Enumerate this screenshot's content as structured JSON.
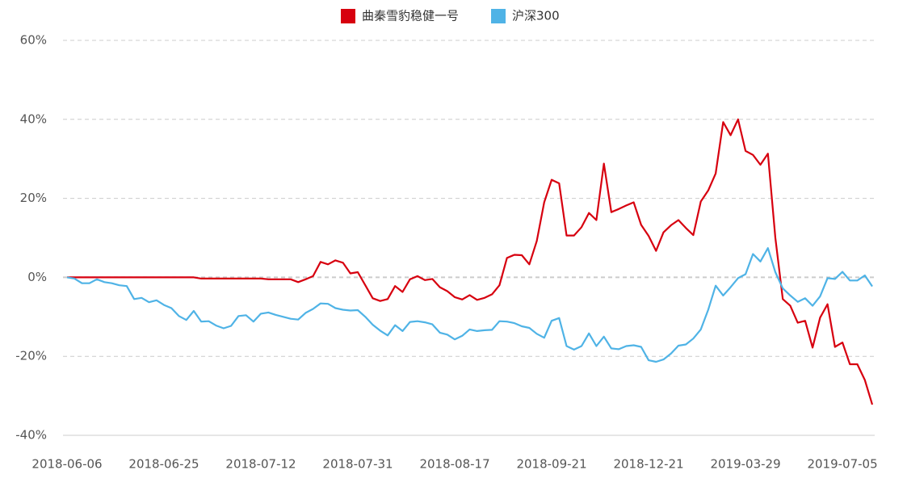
{
  "chart_data": {
    "type": "line",
    "categories": [
      "2018-06-06",
      null,
      null,
      null,
      null,
      null,
      null,
      null,
      null,
      null,
      null,
      null,
      null,
      "2018-06-25",
      null,
      null,
      null,
      null,
      null,
      null,
      null,
      null,
      null,
      null,
      null,
      null,
      "2018-07-12",
      null,
      null,
      null,
      null,
      null,
      null,
      null,
      null,
      null,
      null,
      null,
      null,
      "2018-07-31",
      null,
      null,
      null,
      null,
      null,
      null,
      null,
      null,
      null,
      null,
      null,
      null,
      "2018-08-17",
      null,
      null,
      null,
      null,
      null,
      null,
      null,
      null,
      null,
      null,
      null,
      null,
      "2018-09-21",
      null,
      null,
      null,
      null,
      null,
      null,
      null,
      null,
      null,
      null,
      null,
      null,
      "2018-12-21",
      null,
      null,
      null,
      null,
      null,
      null,
      null,
      null,
      null,
      null,
      null,
      null,
      "2019-03-29",
      null,
      null,
      null,
      null,
      null,
      null,
      null,
      null,
      null,
      null,
      null,
      null,
      "2019-07-05",
      null,
      null,
      null,
      null
    ],
    "series": [
      {
        "name": "曲秦雪豹稳健一号",
        "color": "#d7000f",
        "values": [
          0,
          0,
          0,
          0,
          0,
          0,
          0,
          0,
          0,
          0,
          0,
          0,
          0,
          0,
          0,
          0,
          0,
          0,
          -0.3,
          -0.3,
          -0.3,
          -0.3,
          -0.3,
          -0.3,
          -0.3,
          -0.3,
          -0.3,
          -0.5,
          -0.5,
          -0.5,
          -0.5,
          -1.2,
          -0.5,
          0.3,
          3.9,
          3.3,
          4.3,
          3.7,
          1.0,
          1.3,
          -2,
          -5.3,
          -6,
          -5.5,
          -2.2,
          -3.7,
          -0.5,
          0.3,
          -0.7,
          -0.4,
          -2.5,
          -3.5,
          -5,
          -5.6,
          -4.5,
          -5.7,
          -5.2,
          -4.3,
          -2,
          4.9,
          5.7,
          5.6,
          3.3,
          9.2,
          19,
          24.7,
          23.8,
          10.6,
          10.6,
          12.7,
          16.3,
          14.5,
          28.8,
          16.5,
          17.3,
          18.2,
          19,
          13.3,
          10.5,
          6.7,
          11.4,
          13.2,
          14.5,
          12.5,
          10.7,
          19.2,
          22,
          26.3,
          39.3,
          36,
          40,
          32,
          31,
          28.5,
          31.3,
          10,
          -5.5,
          -7.2,
          -11.5,
          -11,
          -17.8,
          -10.2,
          -6.8,
          -17.6,
          -16.5,
          -22,
          -22,
          -26,
          -32.2
        ]
      },
      {
        "name": "沪深300",
        "color": "#4fb3e6",
        "values": [
          0,
          -0.3,
          -1.5,
          -1.5,
          -0.5,
          -1.2,
          -1.5,
          -2,
          -2.2,
          -5.5,
          -5.2,
          -6.3,
          -5.8,
          -7,
          -7.8,
          -9.8,
          -10.8,
          -8.5,
          -11.2,
          -11.1,
          -12.2,
          -12.9,
          -12.3,
          -9.8,
          -9.6,
          -11.2,
          -9.2,
          -8.9,
          -9.5,
          -10,
          -10.5,
          -10.7,
          -9,
          -8,
          -6.6,
          -6.7,
          -7.8,
          -8.2,
          -8.4,
          -8.3,
          -10,
          -12,
          -13.5,
          -14.7,
          -12.1,
          -13.6,
          -11.3,
          -11.1,
          -11.4,
          -11.9,
          -14,
          -14.5,
          -15.7,
          -14.8,
          -13.2,
          -13.6,
          -13.4,
          -13.3,
          -11.1,
          -11.2,
          -11.6,
          -12.4,
          -12.8,
          -14.3,
          -15.3,
          -11,
          -10.3,
          -17.4,
          -18.3,
          -17.4,
          -14.2,
          -17.4,
          -15,
          -18,
          -18.2,
          -17.4,
          -17.2,
          -17.6,
          -21,
          -21.4,
          -20.8,
          -19.3,
          -17.3,
          -17,
          -15.5,
          -13.2,
          -8.2,
          -2.1,
          -4.6,
          -2.5,
          -0.2,
          0.8,
          5.9,
          4,
          7.4,
          1.3,
          -2.8,
          -4.6,
          -6.2,
          -5.3,
          -7.2,
          -4.8,
          -0.2,
          -0.4,
          1.4,
          -0.8,
          -0.8,
          0.5,
          -2.3
        ]
      }
    ],
    "ylim": [
      -40,
      60
    ],
    "yticks": [
      {
        "value": -40,
        "label": "-40%"
      },
      {
        "value": -20,
        "label": "-20%"
      },
      {
        "value": 0,
        "label": "0%"
      },
      {
        "value": 20,
        "label": "20%"
      },
      {
        "value": 40,
        "label": "40%"
      },
      {
        "value": 60,
        "label": "60%"
      }
    ],
    "grid": true,
    "legend": "top"
  }
}
